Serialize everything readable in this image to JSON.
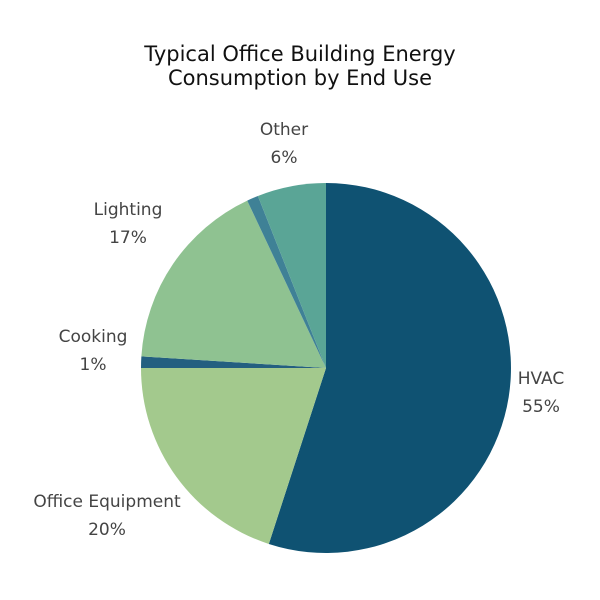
{
  "chart_data": {
    "type": "pie",
    "title_line1": "Typical Office Building Energy",
    "title_line2": "Consumption by End Use",
    "slices": [
      {
        "label": "HVAC",
        "percent_label": "55%",
        "value": 55,
        "color": "#0f5272"
      },
      {
        "label": "Office Equipment",
        "percent_label": "20%",
        "value": 20,
        "color": "#a3c98d"
      },
      {
        "label": "Cooking",
        "percent_label": "1%",
        "value": 1,
        "color": "#235f80"
      },
      {
        "label": "Lighting",
        "percent_label": "17%",
        "value": 17,
        "color": "#8fc291"
      },
      {
        "label": "",
        "percent_label": "",
        "value": 1,
        "color": "#3f8196"
      },
      {
        "label": "Other",
        "percent_label": "6%",
        "value": 6,
        "color": "#5aa596"
      }
    ]
  }
}
